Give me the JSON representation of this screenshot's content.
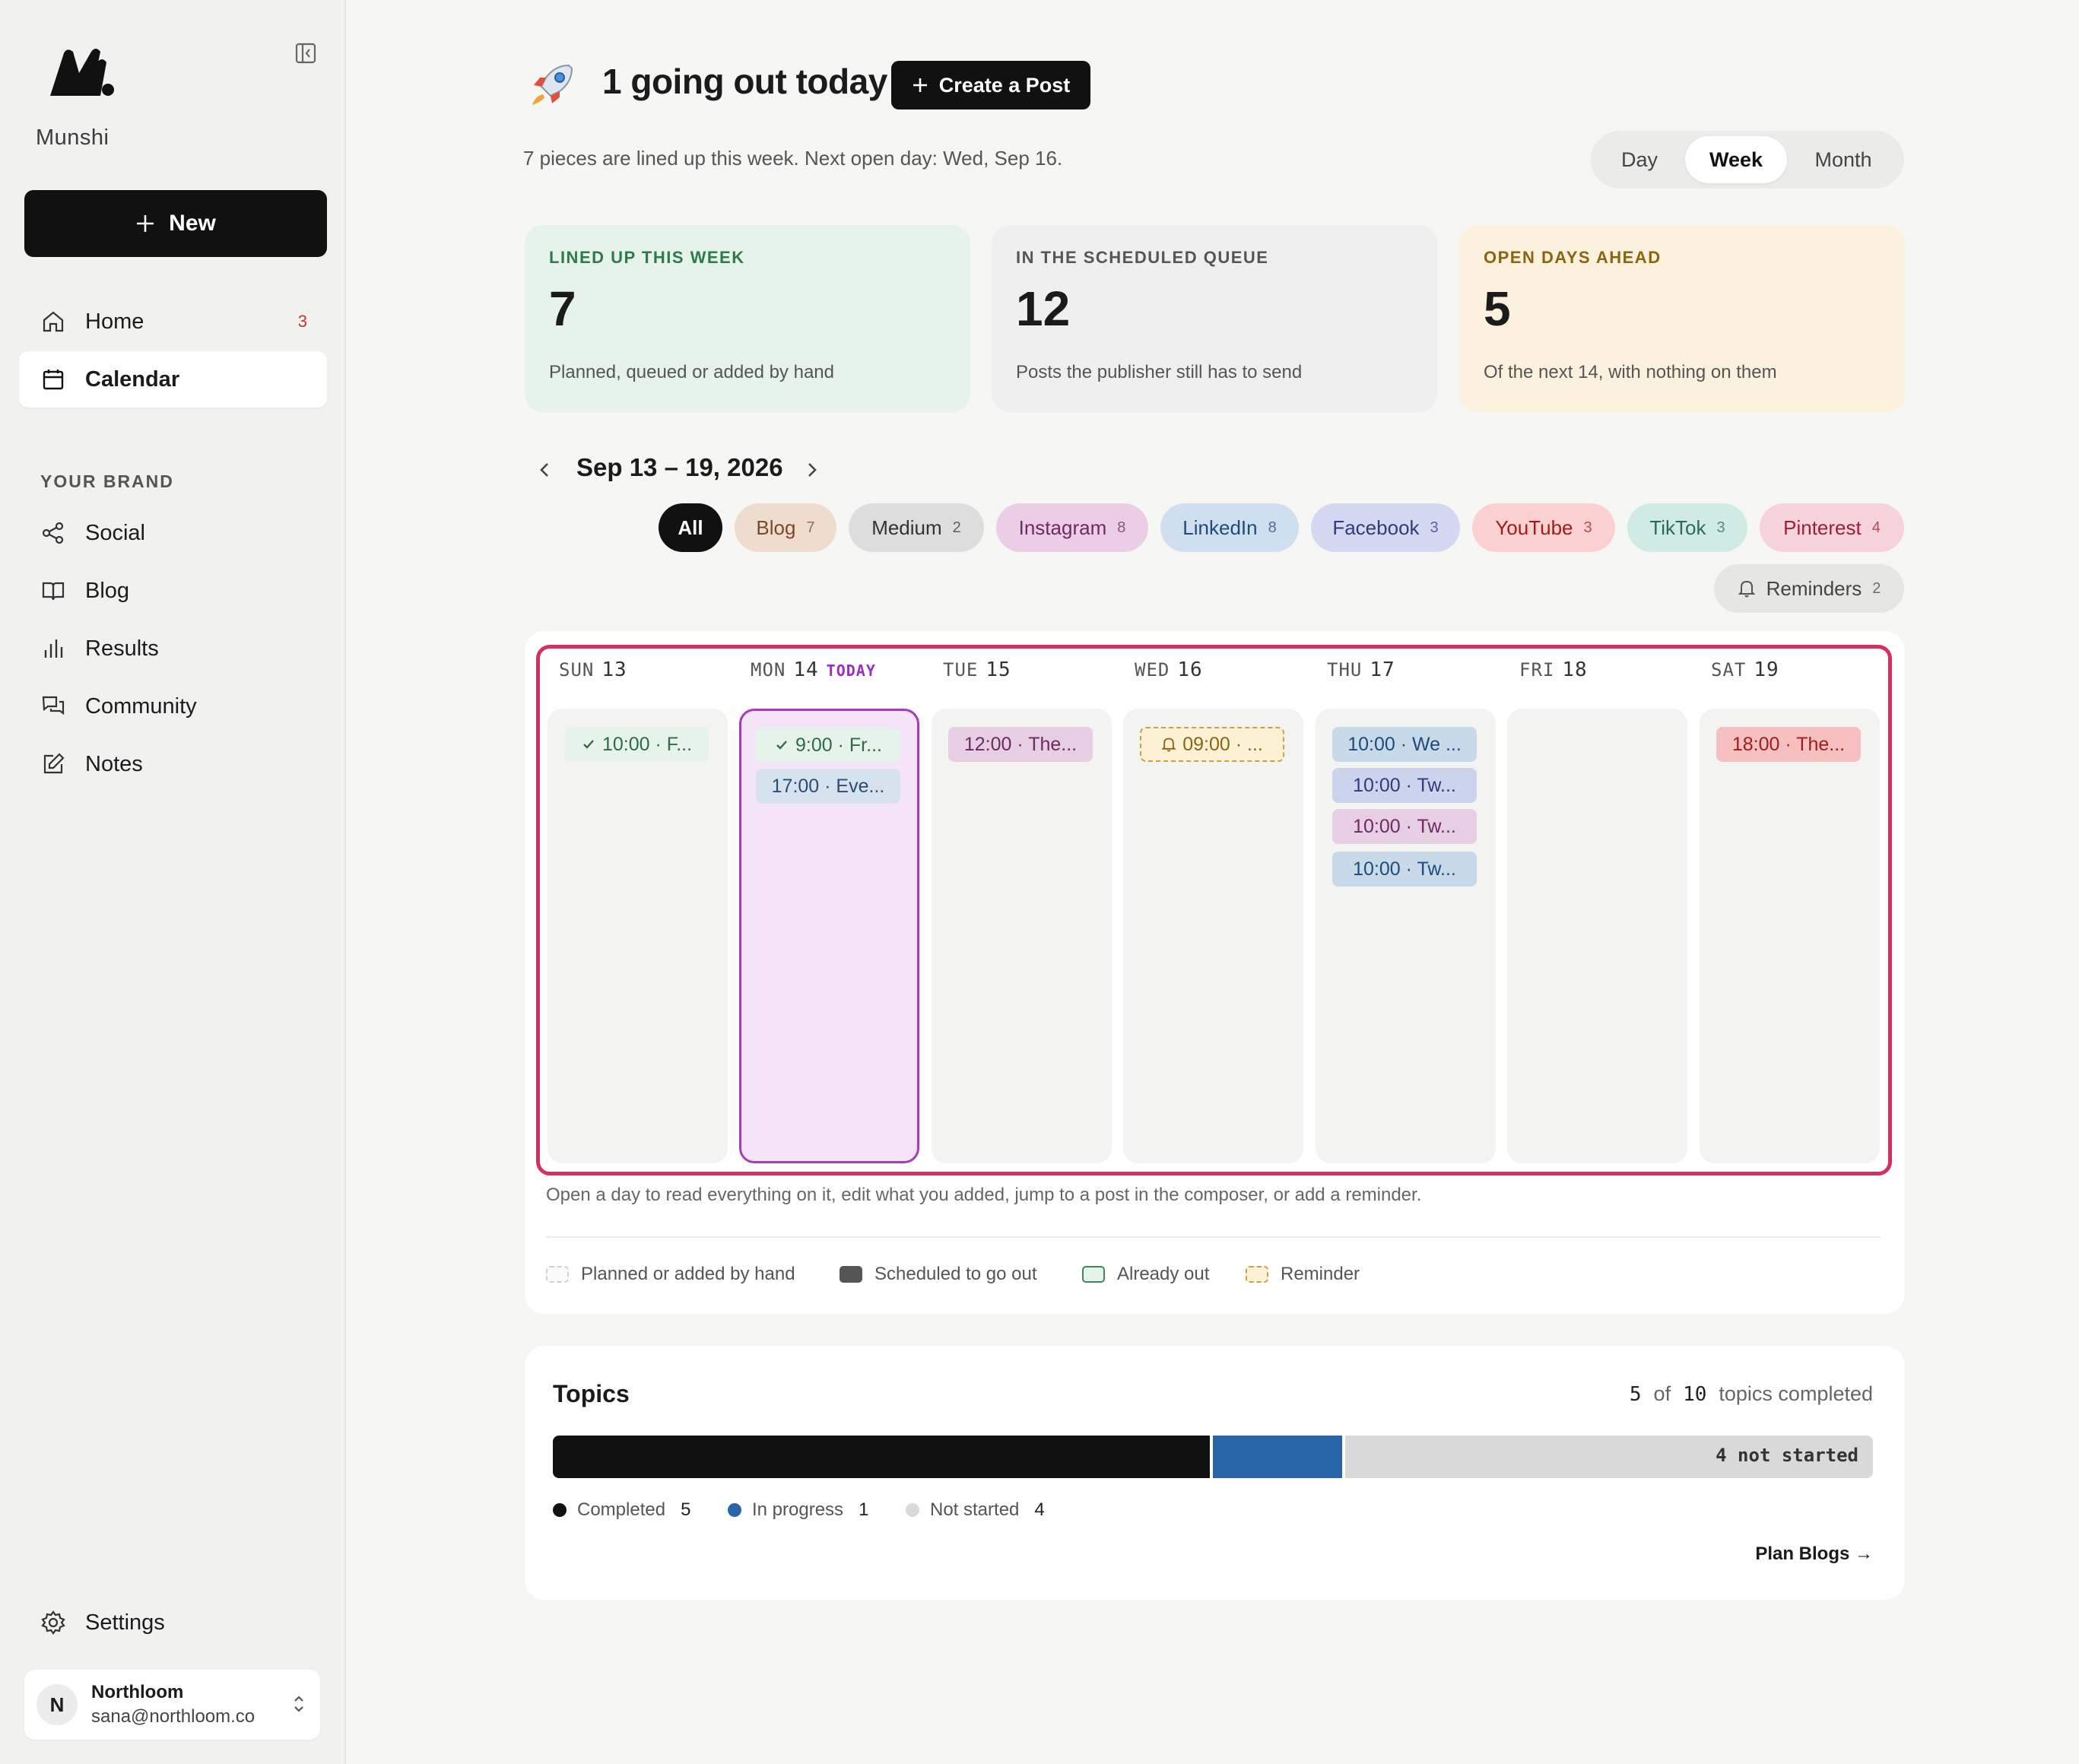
{
  "sidebar": {
    "brand_name": "Munshi",
    "new_label": "New",
    "nav": [
      {
        "label": "Home",
        "badge": "3"
      },
      {
        "label": "Calendar"
      }
    ],
    "section_label": "YOUR BRAND",
    "brand_nav": [
      {
        "label": "Social",
        "icon": "share-icon"
      },
      {
        "label": "Blog",
        "icon": "book-icon"
      },
      {
        "label": "Results",
        "icon": "bar-chart-icon"
      },
      {
        "label": "Community",
        "icon": "chat-icon"
      },
      {
        "label": "Notes",
        "icon": "edit-icon"
      }
    ],
    "settings_label": "Settings",
    "user": {
      "initial": "N",
      "name": "Northloom",
      "email": "sana@northloom.co"
    }
  },
  "header": {
    "headline": "1 going out today",
    "create_label": "Create a Post",
    "subtitle": "7 pieces are lined up this week. Next open day: Wed, Sep 16.",
    "views": [
      "Day",
      "Week",
      "Month"
    ],
    "active_view": "Week"
  },
  "stats": [
    {
      "label": "LINED UP THIS WEEK",
      "value": "7",
      "desc": "Planned, queued or added by hand",
      "color": "#2f7a4d",
      "bg": "#e6f3ea"
    },
    {
      "label": "IN THE SCHEDULED QUEUE",
      "value": "12",
      "desc": "Posts the publisher still has to send",
      "color": "#555555",
      "bg": "#efefef"
    },
    {
      "label": "OPEN DAYS AHEAD",
      "value": "5",
      "desc": "Of the next 14, with nothing on them",
      "color": "#8a6410",
      "bg": "#fcf1dc"
    }
  ],
  "week": {
    "range": "Sep 13 – 19, 2026",
    "filters": [
      {
        "label": "All",
        "count": ""
      },
      {
        "label": "Blog",
        "count": "7"
      },
      {
        "label": "Medium",
        "count": "2"
      },
      {
        "label": "Instagram",
        "count": "8"
      },
      {
        "label": "LinkedIn",
        "count": "8"
      },
      {
        "label": "Facebook",
        "count": "3"
      },
      {
        "label": "YouTube",
        "count": "3"
      },
      {
        "label": "TikTok",
        "count": "3"
      },
      {
        "label": "Pinterest",
        "count": "4"
      }
    ],
    "reminders": {
      "label": "Reminders",
      "count": "2"
    }
  },
  "days": [
    {
      "dow": "SUN",
      "num": "13",
      "events": [
        {
          "text": "10:00 · F...",
          "kind": "out",
          "check": true
        }
      ]
    },
    {
      "dow": "MON",
      "num": "14",
      "today": "TODAY",
      "events": [
        {
          "text": "9:00 · Fr...",
          "kind": "out",
          "check": true
        },
        {
          "text": "17:00 · Eve...",
          "kind": "blog"
        }
      ]
    },
    {
      "dow": "TUE",
      "num": "15",
      "events": [
        {
          "text": "12:00 · The...",
          "kind": "ig"
        }
      ]
    },
    {
      "dow": "WED",
      "num": "16",
      "events": [
        {
          "text": "09:00 · ...",
          "kind": "rem",
          "bell": true
        }
      ]
    },
    {
      "dow": "THU",
      "num": "17",
      "events": [
        {
          "text": "10:00 · We ...",
          "kind": "li"
        },
        {
          "text": "10:00 · Tw...",
          "kind": "fb"
        },
        {
          "text": "10:00 · Tw...",
          "kind": "ig"
        },
        {
          "text": "10:00 · Tw...",
          "kind": "li"
        }
      ]
    },
    {
      "dow": "FRI",
      "num": "18",
      "events": []
    },
    {
      "dow": "SAT",
      "num": "19",
      "events": [
        {
          "text": "18:00 · The...",
          "kind": "yt"
        }
      ]
    }
  ],
  "calendar_help": "Open a day to read everything on it, edit what you added, jump to a post in the composer, or add a reminder.",
  "legend": [
    "Planned or added by hand",
    "Scheduled to go out",
    "Already out",
    "Reminder"
  ],
  "topics": {
    "title": "Topics",
    "completed": "5",
    "of_label": "of",
    "total": "10",
    "suffix": "topics completed",
    "bar_label": "4 not started",
    "breakdown": [
      {
        "label": "Completed",
        "value": 5,
        "color": "#111111"
      },
      {
        "label": "In progress",
        "value": 1,
        "color": "#2a64a8"
      },
      {
        "label": "Not started",
        "value": 4,
        "color": "#d9d9d9"
      }
    ],
    "plan_label": "Plan Blogs →"
  }
}
